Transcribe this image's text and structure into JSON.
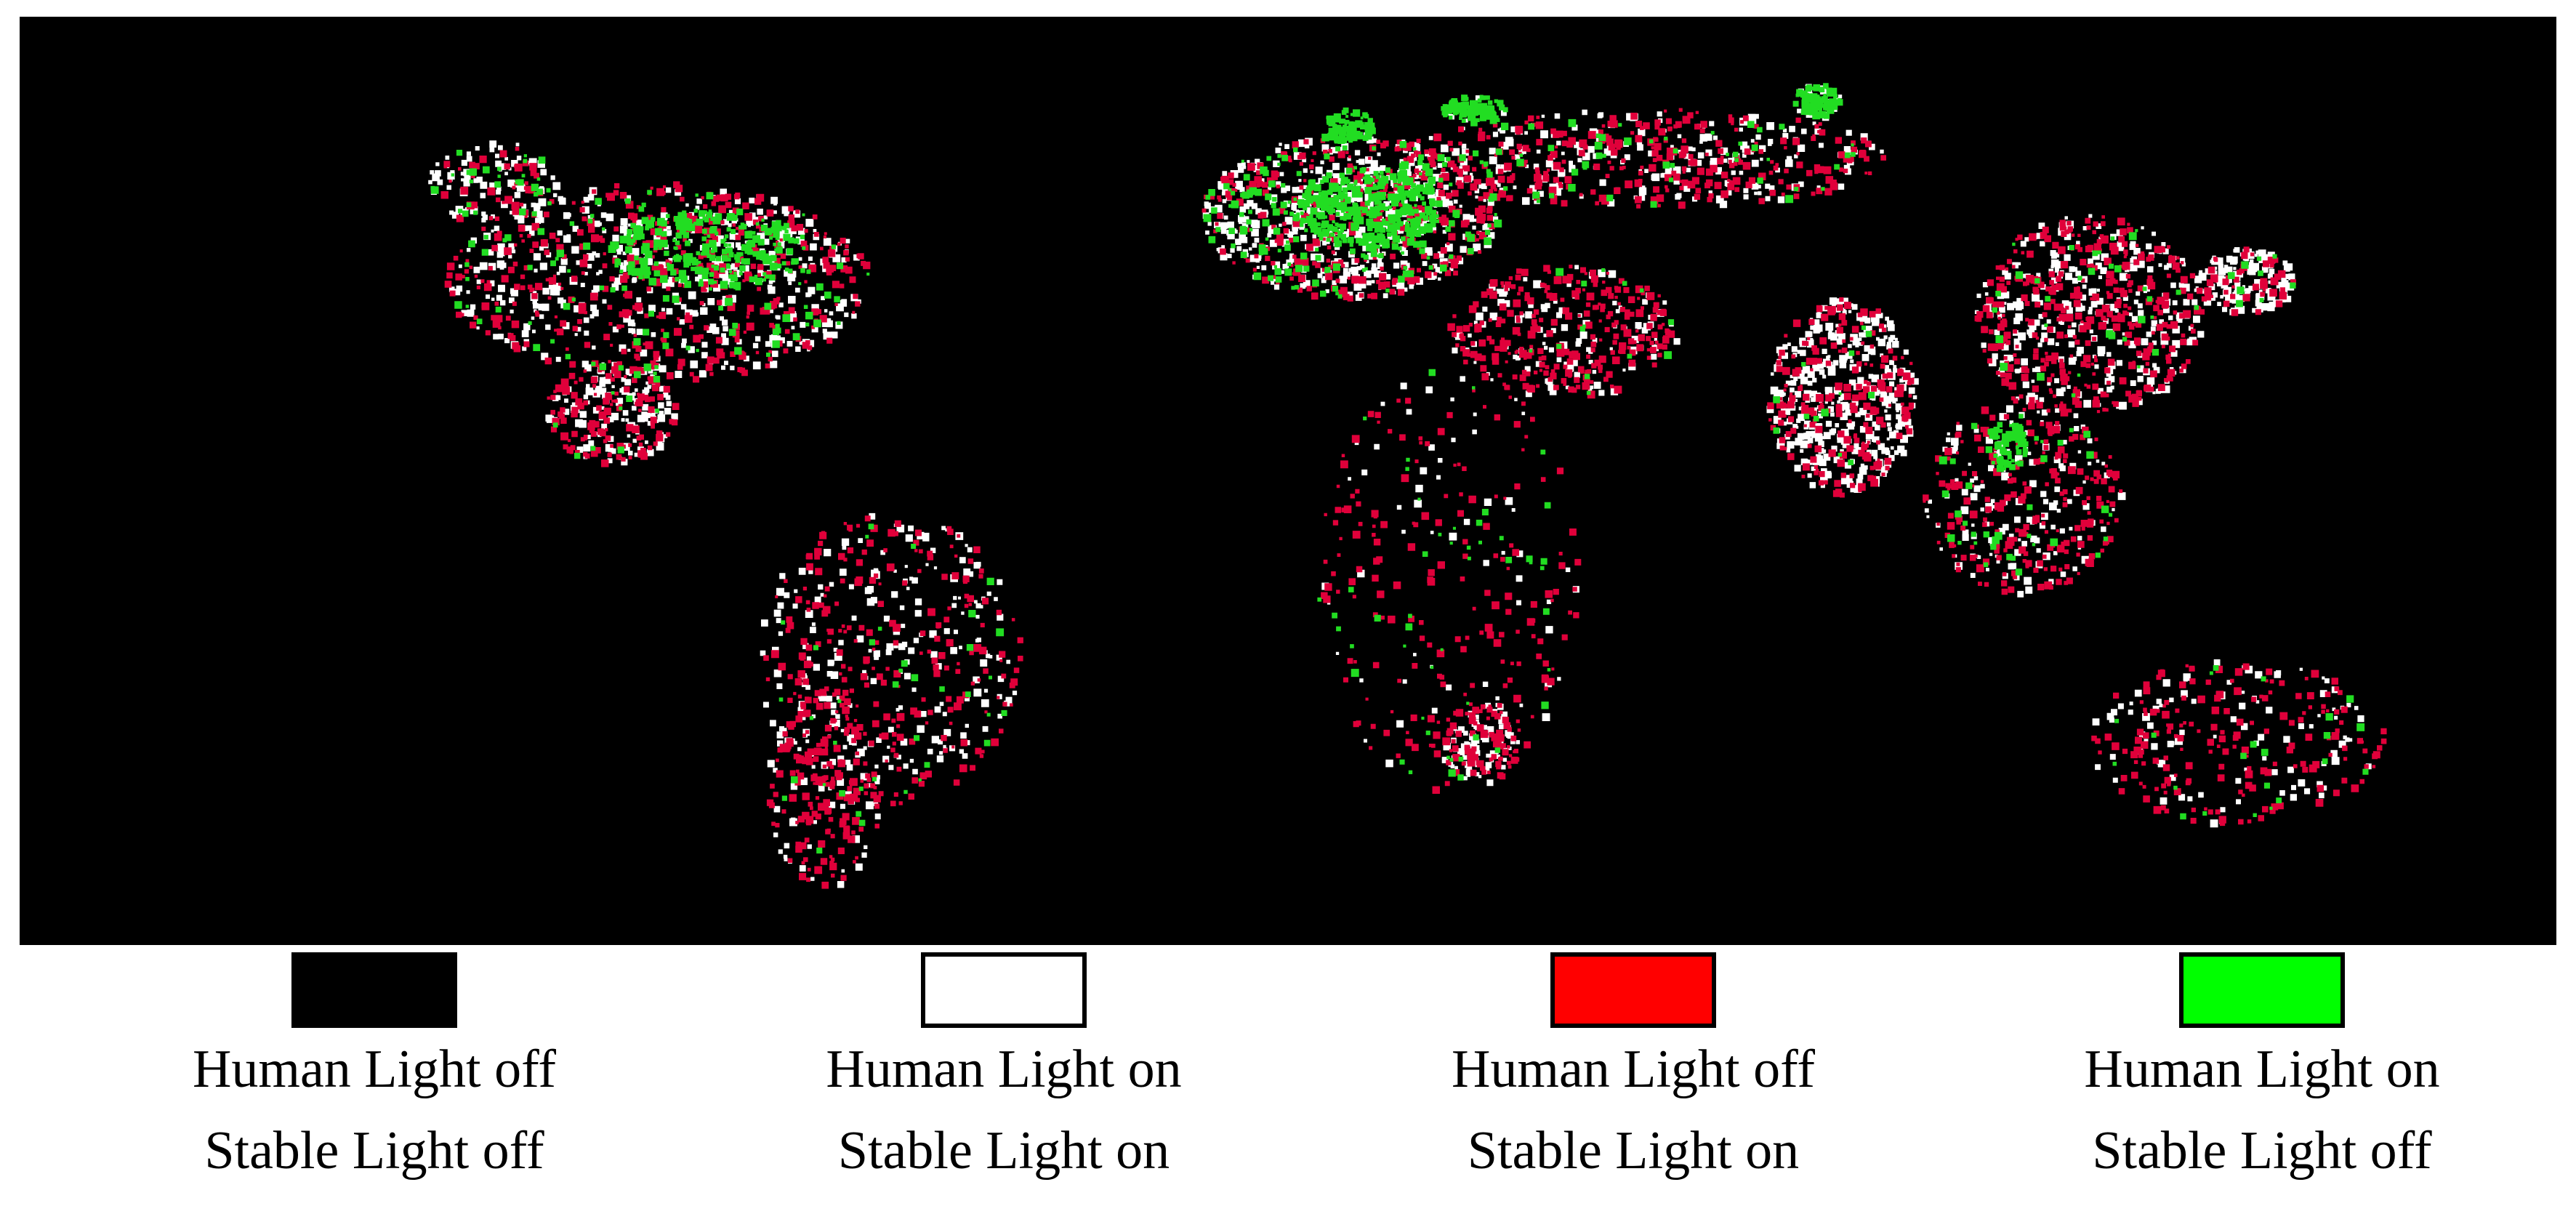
{
  "legend": [
    {
      "color": "#000000",
      "lines": [
        "Human Light off",
        "Stable Light off"
      ]
    },
    {
      "color": "#ffffff",
      "lines": [
        "Human Light on",
        "Stable Light on"
      ]
    },
    {
      "color": "#ff0000",
      "lines": [
        "Human Light off",
        "Stable Light on"
      ]
    },
    {
      "color": "#00ff00",
      "lines": [
        "Human Light on",
        "Stable Light off"
      ]
    }
  ]
}
